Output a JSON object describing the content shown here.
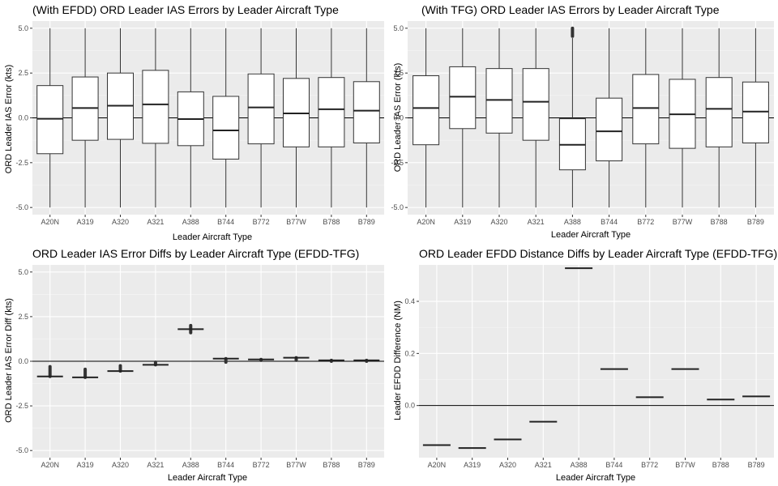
{
  "chart_data": [
    {
      "type": "boxplot",
      "title": "(With EFDD) ORD Leader IAS Errors by Leader Aircraft Type",
      "xlabel": "Leader Aircraft Type",
      "ylabel": "ORD Leader IAS Error (kts)",
      "ylim": [
        -5.4,
        5.4
      ],
      "yticks": [
        "-5.0",
        "-2.5",
        "0.0",
        "2.5",
        "5.0"
      ],
      "ytick_values": [
        -5,
        -2.5,
        0,
        2.5,
        5
      ],
      "hline": 0,
      "categories": [
        "A20N",
        "A319",
        "A320",
        "A321",
        "A388",
        "B744",
        "B772",
        "B77W",
        "B788",
        "B789"
      ],
      "boxes": [
        {
          "min": -5,
          "q1": -2.0,
          "median": -0.05,
          "q3": 1.8,
          "max": 5
        },
        {
          "min": -5,
          "q1": -1.25,
          "median": 0.55,
          "q3": 2.28,
          "max": 5
        },
        {
          "min": -5,
          "q1": -1.2,
          "median": 0.68,
          "q3": 2.5,
          "max": 5
        },
        {
          "min": -5,
          "q1": -1.42,
          "median": 0.75,
          "q3": 2.65,
          "max": 5
        },
        {
          "min": -5,
          "q1": -1.55,
          "median": -0.07,
          "q3": 1.45,
          "max": 5
        },
        {
          "min": -5,
          "q1": -2.3,
          "median": -0.7,
          "q3": 1.2,
          "max": 5
        },
        {
          "min": -5,
          "q1": -1.45,
          "median": 0.58,
          "q3": 2.45,
          "max": 5
        },
        {
          "min": -5,
          "q1": -1.62,
          "median": 0.25,
          "q3": 2.2,
          "max": 5
        },
        {
          "min": -5,
          "q1": -1.62,
          "median": 0.48,
          "q3": 2.25,
          "max": 5
        },
        {
          "min": -5,
          "q1": -1.4,
          "median": 0.4,
          "q3": 2.02,
          "max": 5
        }
      ]
    },
    {
      "type": "boxplot",
      "title": "(With TFG) ORD Leader IAS Errors by Leader Aircraft Type",
      "xlabel": "Leader Aircraft Type",
      "ylabel": "ORD Leader IAS Error (kts)",
      "ylim": [
        -5.4,
        5.4
      ],
      "yticks": [
        "-5.0",
        "-2.5",
        "0.0",
        "2.5",
        "5.0"
      ],
      "ytick_values": [
        -5,
        -2.5,
        0,
        2.5,
        5
      ],
      "hline": 0,
      "categories": [
        "A20N",
        "A319",
        "A320",
        "A321",
        "A388",
        "B744",
        "B772",
        "B77W",
        "B788",
        "B789"
      ],
      "boxes": [
        {
          "min": -5,
          "q1": -1.5,
          "median": 0.55,
          "q3": 2.35,
          "max": 5
        },
        {
          "min": -5,
          "q1": -0.6,
          "median": 1.18,
          "q3": 2.85,
          "max": 5
        },
        {
          "min": -5,
          "q1": -0.85,
          "median": 1.0,
          "q3": 2.75,
          "max": 5
        },
        {
          "min": -5,
          "q1": -1.25,
          "median": 0.9,
          "q3": 2.75,
          "max": 5
        },
        {
          "min": -5,
          "q1": -2.9,
          "median": -1.5,
          "q3": -0.05,
          "max": 4.45,
          "outliers_range": [
            4.55,
            5.0
          ]
        },
        {
          "min": -5,
          "q1": -2.4,
          "median": -0.75,
          "q3": 1.1,
          "max": 5
        },
        {
          "min": -5,
          "q1": -1.45,
          "median": 0.55,
          "q3": 2.42,
          "max": 5
        },
        {
          "min": -5,
          "q1": -1.7,
          "median": 0.2,
          "q3": 2.15,
          "max": 5
        },
        {
          "min": -5,
          "q1": -1.62,
          "median": 0.5,
          "q3": 2.25,
          "max": 5
        },
        {
          "min": -5,
          "q1": -1.4,
          "median": 0.35,
          "q3": 2.0,
          "max": 5
        }
      ]
    },
    {
      "type": "boxplot",
      "title": "ORD Leader IAS Error Diffs by Leader Aircraft Type (EFDD-TFG)",
      "xlabel": "Leader Aircraft Type",
      "ylabel": "ORD Leader IAS Error Diff (kts)",
      "ylim": [
        -5.4,
        5.4
      ],
      "yticks": [
        "-5.0",
        "-2.5",
        "0.0",
        "2.5",
        "5.0"
      ],
      "ytick_values": [
        -5,
        -2.5,
        0,
        2.5,
        5
      ],
      "hline": 0,
      "categories": [
        "A20N",
        "A319",
        "A320",
        "A321",
        "A388",
        "B744",
        "B772",
        "B77W",
        "B788",
        "B789"
      ],
      "boxes": [
        {
          "median": -0.85,
          "outliers_range": [
            -0.85,
            -0.3
          ]
        },
        {
          "median": -0.9,
          "outliers_range": [
            -0.9,
            -0.45
          ]
        },
        {
          "median": -0.55,
          "outliers_range": [
            -0.55,
            -0.25
          ]
        },
        {
          "median": -0.2,
          "outliers_range": [
            -0.2,
            -0.05
          ]
        },
        {
          "median": 1.8,
          "outliers_range": [
            1.6,
            2.0
          ]
        },
        {
          "median": 0.15,
          "outliers_range": [
            -0.05,
            0.15
          ]
        },
        {
          "median": 0.1,
          "outliers_range": [
            0.05,
            0.1
          ]
        },
        {
          "median": 0.2,
          "outliers_range": [
            0.05,
            0.2
          ]
        },
        {
          "median": 0.05,
          "outliers_range": [
            0.0,
            0.05
          ]
        },
        {
          "median": 0.05,
          "outliers_range": [
            0.0,
            0.05
          ]
        }
      ]
    },
    {
      "type": "boxplot",
      "title": "ORD Leader EFDD Distance Diffs by Leader Aircraft Type (EFDD-TFG)",
      "xlabel": "Leader Aircraft Type",
      "ylabel": "Leader EFDD Difference (NM)",
      "ylim": [
        -0.2,
        0.54
      ],
      "yticks": [
        "0.0",
        "0.2",
        "0.4"
      ],
      "ytick_values": [
        0,
        0.2,
        0.4
      ],
      "hline": 0,
      "categories": [
        "A20N",
        "A319",
        "A320",
        "A321",
        "A388",
        "B744",
        "B772",
        "B77W",
        "B788",
        "B789"
      ],
      "boxes": [
        {
          "median": -0.152
        },
        {
          "median": -0.163
        },
        {
          "median": -0.13
        },
        {
          "median": -0.062
        },
        {
          "median": 0.527
        },
        {
          "median": 0.14
        },
        {
          "median": 0.032
        },
        {
          "median": 0.14
        },
        {
          "median": 0.023
        },
        {
          "median": 0.035
        }
      ]
    }
  ]
}
